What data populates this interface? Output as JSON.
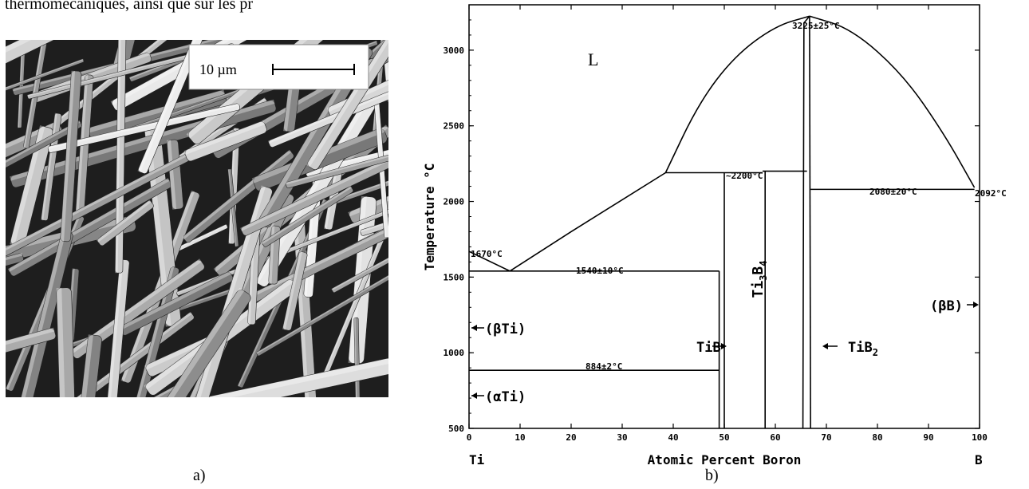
{
  "top_text": "thermomécaniques, ainsi que sur les pr",
  "figure_a": {
    "scale_bar_label": "10 µm",
    "caption": "a)"
  },
  "figure_b": {
    "caption": "b)",
    "y_axis_label": "Temperature °C",
    "x_axis_label": "Atomic Percent Boron",
    "x_left_element": "Ti",
    "x_right_element": "B",
    "x_ticks": [
      0,
      10,
      20,
      30,
      40,
      50,
      60,
      70,
      80,
      90,
      100
    ],
    "y_ticks": [
      500,
      1000,
      1500,
      2000,
      2500,
      3000
    ],
    "liquid_label": "L",
    "annotations": {
      "ti_melting": "1670°C",
      "b2_max": "3225±25°C",
      "b4_peritectic": "~2200°C",
      "eutectic_right": "2080±20°C",
      "b_melting": "2092°C",
      "ti_eutectic": "1540±10°C",
      "alpha_beta": "884±2°C"
    },
    "phase_labels": {
      "beta_ti": "(βTi)",
      "alpha_ti": "(αTi)",
      "tib": "TiB",
      "ti3b4_main": "Ti",
      "ti3b4_sub1": "3",
      "ti3b4_mid": "B",
      "ti3b4_sub2": "4",
      "tib2_main": "TiB",
      "tib2_sub": "2",
      "beta_b": "(βB)"
    }
  },
  "chart_data": {
    "type": "line",
    "title": "",
    "xlabel": "Atomic Percent Boron",
    "ylabel": "Temperature °C",
    "xlim": [
      0,
      100
    ],
    "ylim": [
      500,
      3300
    ],
    "series": [
      {
        "values": [
          [
            0,
            1670
          ],
          [
            8,
            1540
          ]
        ]
      },
      {
        "values": [
          [
            8,
            1540
          ],
          [
            20,
            1800
          ],
          [
            38.5,
            2190
          ]
        ]
      },
      {
        "values": [
          [
            38.5,
            2190
          ],
          [
            45,
            2650
          ],
          [
            52,
            2960
          ],
          [
            60,
            3160
          ],
          [
            66.7,
            3225
          ]
        ]
      },
      {
        "values": [
          [
            66.7,
            3225
          ],
          [
            75,
            3140
          ],
          [
            85,
            2840
          ],
          [
            93,
            2450
          ],
          [
            99,
            2092
          ]
        ]
      },
      {
        "values": [
          [
            0,
            1540
          ],
          [
            49,
            1540
          ]
        ]
      },
      {
        "values": [
          [
            0,
            884
          ],
          [
            49,
            884
          ]
        ]
      },
      {
        "values": [
          [
            38.5,
            2190
          ],
          [
            57.5,
            2190
          ]
        ]
      },
      {
        "values": [
          [
            57.5,
            2200
          ],
          [
            66.2,
            2200
          ]
        ]
      },
      {
        "values": [
          [
            66.9,
            2080
          ],
          [
            99,
            2080
          ]
        ]
      },
      {
        "values": [
          [
            49,
            500
          ],
          [
            49,
            1540
          ]
        ]
      },
      {
        "values": [
          [
            50,
            500
          ],
          [
            50,
            2190
          ]
        ]
      },
      {
        "values": [
          [
            58,
            500
          ],
          [
            58,
            2200
          ]
        ]
      },
      {
        "values": [
          [
            65.4,
            500
          ],
          [
            65.6,
            3180
          ],
          [
            66.7,
            3225
          ]
        ]
      },
      {
        "values": [
          [
            66.7,
            3225
          ],
          [
            66.9,
            500
          ]
        ]
      }
    ]
  }
}
